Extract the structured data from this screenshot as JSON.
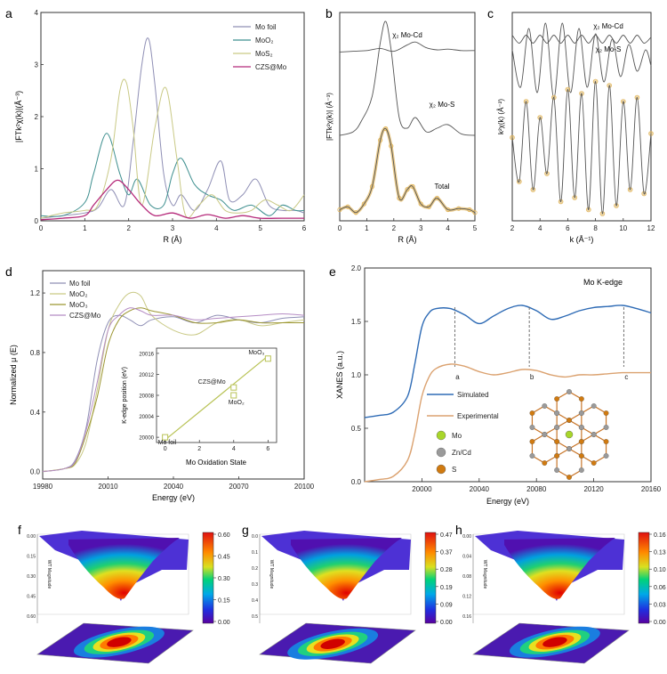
{
  "figure": {
    "colors": {
      "mo_foil": "#8f8fb5",
      "moo2": "#3e8f8f",
      "mos2": "#c9c985",
      "moo3": "#9c9632",
      "czs": "#b5297a",
      "total_exp": "#e0b45a",
      "fit": "#555555",
      "simulated": "#2e6bb5",
      "experimental": "#dba270",
      "inset_line": "#b8c255"
    }
  },
  "chart_data": [
    {
      "panel": "a",
      "type": "line",
      "xlabel": "R (Å)",
      "ylabel": "|FTk²χ(k)|(Å⁻³)",
      "xlim": [
        0,
        6
      ],
      "ylim": [
        0,
        4
      ],
      "xticks": [
        "0",
        "1",
        "2",
        "3",
        "4",
        "5",
        "6"
      ],
      "yticks": [
        "0",
        "1",
        "2",
        "3",
        "4"
      ],
      "legend_position": "top-right",
      "series": [
        {
          "name": "Mo foil",
          "key": "mo_foil",
          "x": [
            0,
            0.5,
            1.0,
            1.3,
            1.6,
            1.9,
            2.1,
            2.3,
            2.45,
            2.6,
            2.8,
            3.0,
            3.2,
            3.5,
            3.8,
            4.1,
            4.3,
            4.6,
            4.9,
            5.2,
            5.5,
            5.8,
            6.0
          ],
          "y": [
            0.05,
            0.1,
            0.15,
            0.25,
            0.6,
            0.3,
            1.5,
            3.0,
            3.5,
            2.6,
            0.9,
            0.3,
            0.5,
            0.2,
            0.6,
            1.15,
            0.4,
            0.5,
            0.8,
            0.3,
            0.2,
            0.2,
            0.15
          ]
        },
        {
          "name": "MoO₂",
          "key": "moo2",
          "x": [
            0,
            0.5,
            1.0,
            1.2,
            1.5,
            1.8,
            2.0,
            2.2,
            2.5,
            2.8,
            3.0,
            3.2,
            3.5,
            3.8,
            4.1,
            4.4,
            4.8,
            5.2,
            5.5,
            5.8,
            6.0
          ],
          "y": [
            0.1,
            0.1,
            0.35,
            0.9,
            1.68,
            0.9,
            0.5,
            0.8,
            0.3,
            0.3,
            0.9,
            1.2,
            0.7,
            0.5,
            0.4,
            0.2,
            0.3,
            0.1,
            0.3,
            0.2,
            0.2
          ]
        },
        {
          "name": "MoS₂",
          "key": "mos2",
          "x": [
            0,
            0.5,
            1.0,
            1.3,
            1.6,
            1.8,
            1.95,
            2.1,
            2.3,
            2.6,
            2.85,
            3.1,
            3.3,
            3.6,
            3.9,
            4.2,
            4.5,
            4.8,
            5.1,
            5.4,
            5.7,
            6.0
          ],
          "y": [
            0.05,
            0.15,
            0.2,
            0.3,
            1.2,
            2.5,
            2.65,
            1.8,
            0.3,
            1.8,
            2.55,
            1.2,
            0.1,
            0.3,
            0.5,
            0.2,
            0.15,
            0.2,
            0.4,
            0.3,
            0.2,
            0.5
          ]
        },
        {
          "name": "CZS@Mo",
          "key": "czs",
          "x": [
            0,
            0.5,
            1.0,
            1.2,
            1.5,
            1.75,
            2.0,
            2.3,
            2.6,
            3.0,
            3.4,
            3.8,
            4.2,
            4.6,
            5.0,
            5.5,
            6.0
          ],
          "y": [
            0.02,
            0.05,
            0.1,
            0.3,
            0.6,
            0.78,
            0.6,
            0.3,
            0.1,
            0.15,
            0.05,
            0.12,
            0.05,
            0.1,
            0.05,
            0.05,
            0.05
          ]
        }
      ]
    },
    {
      "panel": "b",
      "type": "line",
      "xlabel": "R (Å)",
      "ylabel": "|FTk²χ(k)| (Å⁻³)",
      "xlim": [
        0,
        5
      ],
      "xticks": [
        "0",
        "1",
        "2",
        "3",
        "4",
        "5"
      ],
      "annotations": [
        "χ₂ Mo-Cd",
        "χ₂ Mo-S",
        "Total"
      ],
      "series": [
        {
          "name": "χ₂ Mo-Cd",
          "x": [
            0,
            0.5,
            1.0,
            1.5,
            2.0,
            2.5,
            2.8,
            3.2,
            3.6,
            4.0,
            4.5,
            5.0
          ],
          "y": [
            0.02,
            0.03,
            0.04,
            0.07,
            0.03,
            0.12,
            0.16,
            0.08,
            0.05,
            0.06,
            0.04,
            0.04
          ]
        },
        {
          "name": "χ₂ Mo-S",
          "x": [
            0,
            0.5,
            0.8,
            1.2,
            1.5,
            1.7,
            1.9,
            2.2,
            2.5,
            2.8,
            3.2,
            3.6,
            4.0,
            4.5,
            5.0
          ],
          "y": [
            0.1,
            0.15,
            0.3,
            0.65,
            1.4,
            1.7,
            1.3,
            0.35,
            0.2,
            0.35,
            0.15,
            0.2,
            0.25,
            0.12,
            0.1
          ]
        },
        {
          "name": "Total",
          "x": [
            0,
            0.3,
            0.6,
            0.9,
            1.2,
            1.5,
            1.7,
            1.9,
            2.2,
            2.5,
            2.7,
            3.0,
            3.3,
            3.6,
            4.0,
            4.4,
            4.8,
            5.0
          ],
          "y": [
            0.1,
            0.15,
            0.05,
            0.2,
            0.5,
            1.3,
            1.5,
            1.2,
            0.3,
            0.45,
            0.5,
            0.2,
            0.15,
            0.3,
            0.1,
            0.12,
            0.1,
            0.05
          ]
        }
      ]
    },
    {
      "panel": "c",
      "type": "line",
      "xlabel": "k (Å⁻¹)",
      "ylabel": "k²χ(k) (Å⁻²)",
      "xlim": [
        2,
        12
      ],
      "xticks": [
        "2",
        "4",
        "6",
        "8",
        "10",
        "12"
      ],
      "annotations": [
        "χ₂ Mo-Cd",
        "χ₂ Mo-S"
      ],
      "series": [
        {
          "name": "χ₂ Mo-Cd",
          "x": [
            2,
            2.5,
            3,
            3.5,
            4,
            4.5,
            5,
            5.5,
            6,
            6.5,
            7,
            7.5,
            8,
            8.5,
            9,
            9.5,
            10,
            10.5,
            11,
            11.5,
            12
          ],
          "y": [
            0.1,
            -0.1,
            0.1,
            -0.1,
            0.1,
            -0.1,
            0.1,
            -0.1,
            0.1,
            -0.1,
            0.1,
            -0.1,
            0.1,
            -0.1,
            0.1,
            -0.1,
            0.1,
            -0.1,
            0.1,
            -0.1,
            0.05
          ]
        },
        {
          "name": "χ₂ Mo-S",
          "x": [
            2,
            2.6,
            3.2,
            3.8,
            4.4,
            5,
            5.6,
            6.2,
            6.8,
            7.4,
            8,
            8.6,
            9.2,
            9.8,
            10.4,
            11,
            11.6,
            12
          ],
          "y": [
            0.2,
            -0.5,
            0.6,
            -0.6,
            0.7,
            -0.7,
            0.7,
            -0.6,
            0.6,
            -0.5,
            0.5,
            -0.4,
            0.4,
            -0.3,
            0.3,
            -0.2,
            0.2,
            -0.1
          ]
        },
        {
          "name": "Total",
          "x": [
            2,
            2.5,
            3,
            3.5,
            4,
            4.5,
            5,
            5.5,
            6,
            6.5,
            7,
            7.5,
            8,
            8.5,
            9,
            9.5,
            10,
            10.5,
            11,
            11.5,
            12
          ],
          "y": [
            0.3,
            -0.8,
            1.2,
            -1.0,
            0.8,
            -0.6,
            1.3,
            -1.3,
            1.5,
            -1.2,
            1.4,
            -1.5,
            1.7,
            -1.6,
            1.6,
            -1.4,
            1.2,
            -1.0,
            1.3,
            -1.1,
            0.4
          ]
        }
      ]
    },
    {
      "panel": "d",
      "type": "line",
      "xlabel": "Energy (eV)",
      "ylabel": "Normalized μ (E)",
      "xlim": [
        19980,
        20100
      ],
      "ylim": [
        -0.05,
        1.35
      ],
      "xticks": [
        "19980",
        "20010",
        "20040",
        "20070",
        "20100"
      ],
      "yticks": [
        "0.0",
        "0.4",
        "0.8",
        "1.2"
      ],
      "legend_position": "top-left",
      "series": [
        {
          "name": "Mo foil",
          "key": "mo_foil",
          "x": [
            19980,
            19990,
            19995,
            20000,
            20005,
            20010,
            20015,
            20020,
            20025,
            20030,
            20040,
            20050,
            20060,
            20070,
            20080,
            20090,
            20100
          ],
          "y": [
            0.0,
            0.02,
            0.08,
            0.3,
            0.75,
            1.0,
            1.05,
            1.02,
            0.98,
            1.02,
            1.04,
            1.0,
            1.05,
            1.02,
            1.0,
            1.03,
            1.04
          ]
        },
        {
          "name": "MoO₂",
          "key": "mos2",
          "x": [
            19980,
            19990,
            19995,
            20000,
            20005,
            20010,
            20015,
            20020,
            20025,
            20030,
            20040,
            20050,
            20060,
            20070,
            20080,
            20090,
            20100
          ],
          "y": [
            0.0,
            0.02,
            0.05,
            0.2,
            0.55,
            0.95,
            1.12,
            1.2,
            1.18,
            1.05,
            0.95,
            0.92,
            1.0,
            1.02,
            0.98,
            1.0,
            1.02
          ]
        },
        {
          "name": "MoO₃",
          "key": "moo3",
          "x": [
            19980,
            19990,
            19995,
            20000,
            20005,
            20010,
            20015,
            20020,
            20025,
            20030,
            20040,
            20050,
            20060,
            20070,
            20080,
            20090,
            20100
          ],
          "y": [
            0.0,
            0.02,
            0.06,
            0.25,
            0.5,
            0.85,
            1.02,
            1.08,
            1.1,
            1.08,
            1.05,
            1.0,
            1.0,
            1.02,
            1.0,
            1.0,
            1.0
          ]
        },
        {
          "name": "CZS@Mo",
          "key": "czs_light",
          "x": [
            19980,
            19990,
            19995,
            20000,
            20005,
            20010,
            20015,
            20020,
            20025,
            20030,
            20040,
            20050,
            20060,
            20070,
            20080,
            20090,
            20100
          ],
          "y": [
            0.0,
            0.02,
            0.07,
            0.28,
            0.6,
            0.95,
            1.05,
            1.1,
            1.08,
            1.05,
            1.05,
            1.02,
            1.03,
            1.04,
            1.05,
            1.06,
            1.05
          ]
        }
      ]
    },
    {
      "panel": "d-inset",
      "type": "scatter",
      "xlabel": "Mo Oxidation State",
      "ylabel": "K-edge position (eV)",
      "xlim": [
        -0.5,
        6.5
      ],
      "ylim": [
        19999,
        20017
      ],
      "xticks": [
        "0",
        "2",
        "4",
        "6"
      ],
      "yticks": [
        "20000",
        "20004",
        "20008",
        "20012",
        "20016"
      ],
      "points": [
        {
          "label": "Mo foil",
          "x": 0,
          "y": 20000
        },
        {
          "label": "MoO₂",
          "x": 4,
          "y": 20008
        },
        {
          "label": "CZS@Mo",
          "x": 4,
          "y": 20009.5
        },
        {
          "label": "MoO₃",
          "x": 6,
          "y": 20015
        }
      ],
      "fit": {
        "x": [
          0,
          6
        ],
        "y": [
          19999.5,
          20015.5
        ]
      }
    },
    {
      "panel": "e",
      "type": "line",
      "xlabel": "Energy (eV)",
      "ylabel": "XANES (a.u.)",
      "title": "Mo K-edge",
      "xlim": [
        19960,
        20160
      ],
      "ylim": [
        0,
        2
      ],
      "xticks": [
        "20000",
        "20040",
        "20080",
        "20120",
        "20160"
      ],
      "yticks": [
        "0.0",
        "0.5",
        "1.0",
        "1.5",
        "2.0"
      ],
      "peak_labels": [
        "a",
        "b",
        "c"
      ],
      "peak_x": [
        20023,
        20075,
        20141
      ],
      "legend": [
        "Simulated",
        "Experimental"
      ],
      "species_legend": [
        "Mo",
        "Zn/Cd",
        "S"
      ],
      "series": [
        {
          "name": "Simulated",
          "key": "simulated",
          "x": [
            19960,
            19970,
            19980,
            19990,
            19995,
            20000,
            20005,
            20010,
            20020,
            20030,
            20040,
            20050,
            20060,
            20070,
            20080,
            20090,
            20100,
            20110,
            20120,
            20130,
            20140,
            20150,
            20160
          ],
          "y": [
            0.6,
            0.62,
            0.65,
            0.8,
            1.1,
            1.45,
            1.58,
            1.62,
            1.62,
            1.56,
            1.48,
            1.55,
            1.62,
            1.65,
            1.6,
            1.52,
            1.55,
            1.6,
            1.63,
            1.64,
            1.65,
            1.62,
            1.58
          ]
        },
        {
          "name": "Experimental",
          "key": "experimental",
          "x": [
            19960,
            19970,
            19980,
            19990,
            19995,
            20000,
            20005,
            20010,
            20020,
            20030,
            20040,
            20050,
            20060,
            20070,
            20080,
            20090,
            20100,
            20110,
            20120,
            20130,
            20140,
            20150,
            20160
          ],
          "y": [
            0.0,
            0.02,
            0.05,
            0.2,
            0.45,
            0.8,
            0.98,
            1.06,
            1.1,
            1.08,
            1.03,
            1.0,
            1.02,
            1.05,
            1.04,
            1.0,
            0.98,
            1.0,
            1.0,
            1.01,
            1.02,
            1.02,
            1.02
          ]
        }
      ]
    },
    {
      "panel": "f",
      "type": "heatmap",
      "zlabel": "WT Magnitude",
      "colorbar_ticks": [
        "0.60",
        "0.45",
        "0.30",
        "0.15",
        "0.00"
      ],
      "z_axis_ticks": [
        "0.00",
        "0.15",
        "0.30",
        "0.45",
        "0.60"
      ]
    },
    {
      "panel": "g",
      "type": "heatmap",
      "zlabel": "WT Magnitude",
      "colorbar_ticks": [
        "0.47",
        "0.37",
        "0.28",
        "0.19",
        "0.09",
        "0.00"
      ],
      "z_axis_ticks": [
        "0.0",
        "0.1",
        "0.2",
        "0.3",
        "0.4",
        "0.5"
      ]
    },
    {
      "panel": "h",
      "type": "heatmap",
      "zlabel": "WT Magnitude",
      "colorbar_ticks": [
        "0.16",
        "0.13",
        "0.10",
        "0.06",
        "0.03",
        "0.00"
      ],
      "z_axis_ticks": [
        "0.00",
        "0.04",
        "0.08",
        "0.12",
        "0.16"
      ]
    }
  ],
  "labels": {
    "panel_a": "a",
    "panel_b": "b",
    "panel_c": "c",
    "panel_d": "d",
    "panel_e": "e",
    "panel_f": "f",
    "panel_g": "g",
    "panel_h": "h",
    "a_legend": [
      "Mo foil",
      "MoO₂",
      "MoS₂",
      "CZS@Mo"
    ],
    "d_legend": [
      "Mo foil",
      "MoO₂",
      "MoO₃",
      "CZS@Mo"
    ],
    "inset_labels": [
      "MoO₃",
      "CZS@Mo",
      "MoO₂",
      "Mo foil"
    ]
  }
}
